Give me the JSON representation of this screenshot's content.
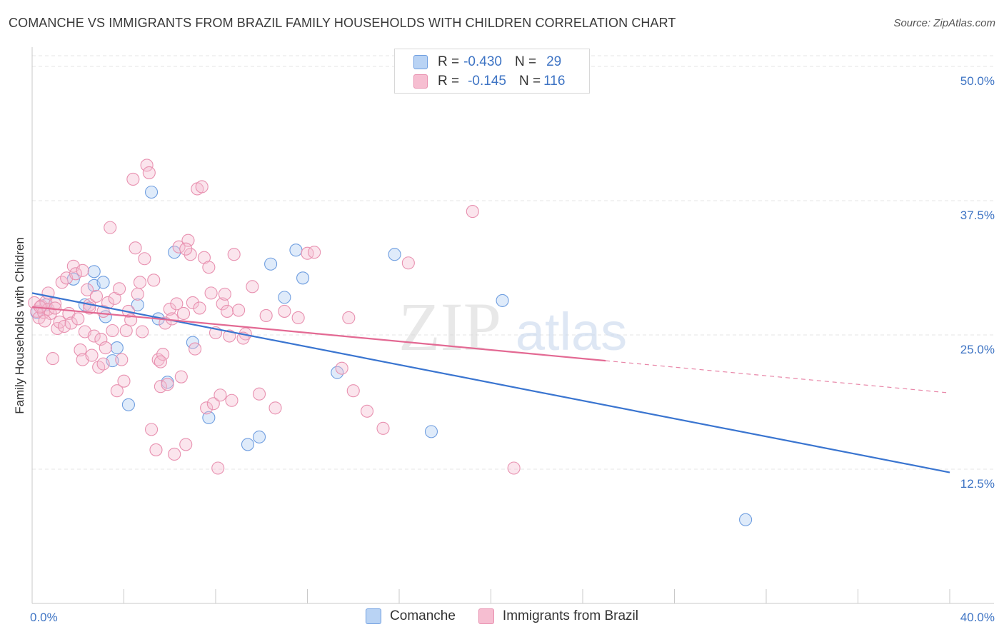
{
  "title": "COMANCHE VS IMMIGRANTS FROM BRAZIL FAMILY HOUSEHOLDS WITH CHILDREN CORRELATION CHART",
  "source": "Source: ZipAtlas.com",
  "watermark": {
    "zip": "ZIP",
    "atlas": "atlas"
  },
  "colors": {
    "blue": "#3a75d0",
    "blue_fill": "#b9d3f4",
    "pink": "#e36993",
    "pink_fill": "#f6bed1",
    "tick_label": "#3e74c4",
    "grid": "#e4e4e4"
  },
  "legend": {
    "rows": [
      {
        "r_label": "R =",
        "r_value": "-0.430",
        "n_label": "N =",
        "n_value": "29"
      },
      {
        "r_label": "R =",
        "r_value": "-0.145",
        "n_label": "N =",
        "n_value": "116"
      }
    ]
  },
  "chart_data": {
    "type": "scatter",
    "title": "COMANCHE VS IMMIGRANTS FROM BRAZIL FAMILY HOUSEHOLDS WITH CHILDREN CORRELATION CHART",
    "xlabel": "",
    "ylabel": "Family Households with Children",
    "xlim": [
      0,
      40
    ],
    "ylim": [
      0,
      51
    ],
    "x_tick_labels": [
      {
        "value": 0,
        "label": "0.0%"
      },
      {
        "value": 40,
        "label": "40.0%"
      }
    ],
    "y_ticks": [
      {
        "value": 12.5,
        "label": "12.5%"
      },
      {
        "value": 25.0,
        "label": "25.0%"
      },
      {
        "value": 37.5,
        "label": "37.5%"
      },
      {
        "value": 50.0,
        "label": "50.0%"
      }
    ],
    "grid": true,
    "legend_position": "top-center",
    "series": [
      {
        "name": "Comanche",
        "color": "#3a75d0",
        "points": [
          [
            0.2,
            27.1
          ],
          [
            0.6,
            27.8
          ],
          [
            1.8,
            30.2
          ],
          [
            2.3,
            27.8
          ],
          [
            2.7,
            30.9
          ],
          [
            2.7,
            29.6
          ],
          [
            3.1,
            29.9
          ],
          [
            3.2,
            26.7
          ],
          [
            3.5,
            22.6
          ],
          [
            3.7,
            23.8
          ],
          [
            4.2,
            18.5
          ],
          [
            4.6,
            27.8
          ],
          [
            5.2,
            38.3
          ],
          [
            5.5,
            26.5
          ],
          [
            5.9,
            20.6
          ],
          [
            6.2,
            32.7
          ],
          [
            7.0,
            24.3
          ],
          [
            7.7,
            17.3
          ],
          [
            9.4,
            14.8
          ],
          [
            9.9,
            15.5
          ],
          [
            10.4,
            31.6
          ],
          [
            11.0,
            28.5
          ],
          [
            11.5,
            32.9
          ],
          [
            11.8,
            30.3
          ],
          [
            13.3,
            21.5
          ],
          [
            15.8,
            32.5
          ],
          [
            17.4,
            16.0
          ],
          [
            20.5,
            28.2
          ],
          [
            31.1,
            7.8
          ]
        ],
        "trend": {
          "x": [
            0,
            40
          ],
          "y": [
            28.9,
            12.2
          ],
          "style": "solid"
        }
      },
      {
        "name": "Immigrants from Brazil",
        "color": "#e36993",
        "points": [
          [
            0.1,
            28.0
          ],
          [
            0.2,
            27.2
          ],
          [
            0.3,
            26.6
          ],
          [
            0.4,
            27.7
          ],
          [
            0.5,
            27.1
          ],
          [
            0.6,
            28.1
          ],
          [
            0.7,
            27.4
          ],
          [
            0.8,
            27.0
          ],
          [
            0.9,
            22.8
          ],
          [
            1.0,
            27.9
          ],
          [
            1.1,
            25.6
          ],
          [
            1.2,
            26.2
          ],
          [
            1.3,
            29.9
          ],
          [
            1.4,
            25.8
          ],
          [
            1.5,
            30.3
          ],
          [
            1.6,
            27.0
          ],
          [
            1.7,
            26.1
          ],
          [
            1.8,
            31.4
          ],
          [
            1.9,
            30.7
          ],
          [
            2.0,
            26.5
          ],
          [
            2.1,
            23.6
          ],
          [
            2.2,
            22.7
          ],
          [
            2.3,
            25.3
          ],
          [
            2.4,
            29.2
          ],
          [
            2.5,
            27.8
          ],
          [
            2.6,
            23.1
          ],
          [
            2.7,
            24.9
          ],
          [
            2.8,
            28.6
          ],
          [
            2.9,
            22.0
          ],
          [
            3.0,
            24.6
          ],
          [
            3.1,
            27.2
          ],
          [
            3.2,
            23.8
          ],
          [
            3.3,
            28.0
          ],
          [
            3.4,
            35.0
          ],
          [
            3.5,
            25.4
          ],
          [
            3.6,
            28.4
          ],
          [
            3.7,
            19.8
          ],
          [
            3.8,
            29.3
          ],
          [
            3.9,
            22.7
          ],
          [
            4.0,
            20.7
          ],
          [
            4.1,
            25.4
          ],
          [
            4.2,
            27.2
          ],
          [
            4.3,
            26.4
          ],
          [
            4.4,
            39.5
          ],
          [
            4.5,
            33.1
          ],
          [
            4.6,
            28.8
          ],
          [
            4.7,
            29.9
          ],
          [
            4.8,
            25.3
          ],
          [
            4.9,
            32.1
          ],
          [
            5.0,
            40.8
          ],
          [
            5.1,
            40.1
          ],
          [
            5.2,
            16.2
          ],
          [
            5.3,
            30.1
          ],
          [
            5.4,
            14.3
          ],
          [
            5.5,
            22.7
          ],
          [
            5.6,
            20.2
          ],
          [
            5.7,
            23.2
          ],
          [
            5.8,
            26.1
          ],
          [
            5.9,
            20.4
          ],
          [
            6.0,
            27.4
          ],
          [
            6.1,
            26.5
          ],
          [
            6.2,
            13.9
          ],
          [
            6.3,
            27.9
          ],
          [
            6.4,
            33.2
          ],
          [
            6.5,
            21.1
          ],
          [
            6.6,
            27.0
          ],
          [
            6.7,
            14.8
          ],
          [
            6.8,
            33.8
          ],
          [
            6.9,
            32.5
          ],
          [
            7.0,
            28.0
          ],
          [
            7.1,
            23.7
          ],
          [
            7.2,
            38.6
          ],
          [
            7.3,
            27.5
          ],
          [
            7.4,
            38.8
          ],
          [
            7.5,
            32.2
          ],
          [
            7.6,
            18.2
          ],
          [
            7.7,
            31.3
          ],
          [
            7.8,
            28.9
          ],
          [
            7.9,
            18.6
          ],
          [
            8.0,
            25.2
          ],
          [
            8.1,
            12.6
          ],
          [
            8.2,
            19.4
          ],
          [
            8.3,
            27.9
          ],
          [
            8.4,
            28.8
          ],
          [
            8.5,
            27.2
          ],
          [
            8.6,
            24.9
          ],
          [
            8.7,
            18.9
          ],
          [
            8.8,
            32.5
          ],
          [
            9.0,
            27.3
          ],
          [
            9.3,
            25.1
          ],
          [
            9.6,
            29.5
          ],
          [
            9.9,
            19.5
          ],
          [
            10.2,
            26.8
          ],
          [
            10.6,
            18.2
          ],
          [
            11.0,
            27.2
          ],
          [
            11.6,
            26.6
          ],
          [
            12.0,
            32.6
          ],
          [
            12.3,
            32.7
          ],
          [
            13.5,
            21.9
          ],
          [
            13.8,
            26.6
          ],
          [
            14.0,
            19.8
          ],
          [
            14.6,
            17.9
          ],
          [
            15.3,
            16.3
          ],
          [
            16.4,
            31.7
          ],
          [
            19.2,
            36.5
          ],
          [
            21.0,
            12.6
          ],
          [
            0.7,
            28.9
          ],
          [
            1.0,
            27.5
          ],
          [
            0.35,
            27.6
          ],
          [
            0.55,
            26.3
          ],
          [
            2.2,
            31.0
          ],
          [
            2.5,
            27.5
          ],
          [
            5.6,
            22.5
          ],
          [
            6.7,
            33.0
          ],
          [
            9.2,
            24.7
          ],
          [
            3.1,
            22.3
          ]
        ],
        "trend": {
          "x": [
            0,
            25.0
          ],
          "y": [
            27.6,
            22.6
          ],
          "style": "solid",
          "dashed_extension": {
            "x": [
              25.0,
              40
            ],
            "y": [
              22.6,
              19.6
            ]
          }
        }
      }
    ]
  }
}
